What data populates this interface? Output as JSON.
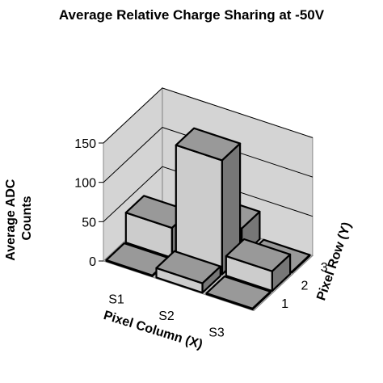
{
  "chart_data": {
    "type": "bar",
    "title": "Average Relative Charge Sharing at -50V",
    "zlabel_lines": [
      "Average ADC",
      "Counts"
    ],
    "xlabel": "Pixel Column (X)",
    "ylabel": "Pixel Row (Y)",
    "x_categories": [
      "S1",
      "S2",
      "S3"
    ],
    "y_categories": [
      "1",
      "2",
      "3"
    ],
    "z_ticks": [
      "0",
      "50",
      "100",
      "150"
    ],
    "zlim": [
      0,
      150
    ],
    "grid": true,
    "bars": [
      {
        "x": "S1",
        "y": "1",
        "value": 1
      },
      {
        "x": "S2",
        "y": "1",
        "value": 12
      },
      {
        "x": "S3",
        "y": "1",
        "value": 1
      },
      {
        "x": "S1",
        "y": "2",
        "value": 38
      },
      {
        "x": "S2",
        "y": "2",
        "value": 145
      },
      {
        "x": "S3",
        "y": "2",
        "value": 25
      },
      {
        "x": "S1",
        "y": "3",
        "value": 1
      },
      {
        "x": "S2",
        "y": "3",
        "value": 35
      },
      {
        "x": "S3",
        "y": "3",
        "value": 1
      }
    ],
    "colors": {
      "bar_top": "#999999",
      "bar_front": "#cccccc",
      "bar_side": "#777777",
      "wall": "#d4d4d4",
      "floor": "#c0c0c0",
      "gridline": "#000000"
    }
  }
}
